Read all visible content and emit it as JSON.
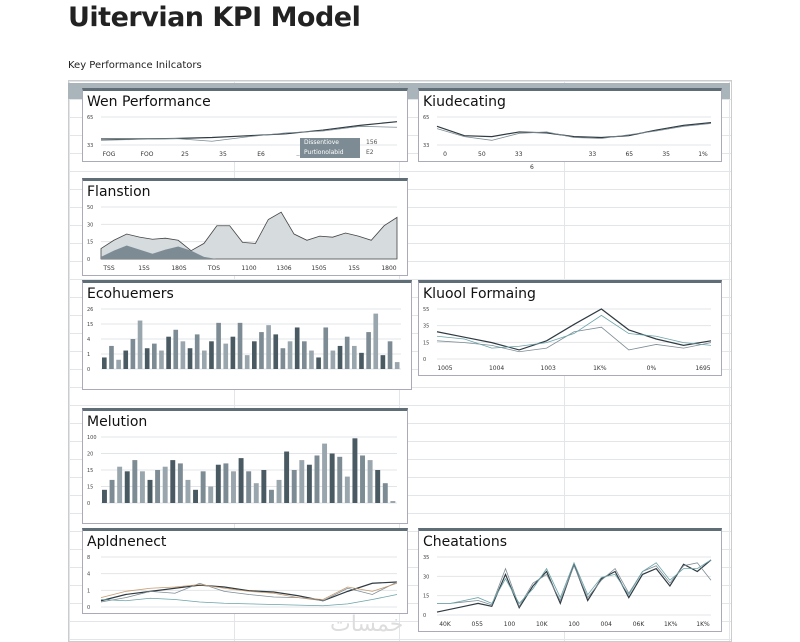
{
  "header": {
    "title": "Uitervian KPI Model",
    "subtitle": "Key Performance Inilcators"
  },
  "legend": {
    "items": [
      {
        "label": "Dissentiove",
        "value": "156"
      },
      {
        "label": "Purtionolabid",
        "value": "E2"
      }
    ]
  },
  "watermark": "خمسات",
  "colors": {
    "dark": "#4a5a63",
    "mid": "#7d8c94",
    "light": "#c5ccd0",
    "line2": "#6aa3a8",
    "line3": "#c79a6e"
  },
  "chart_data": [
    {
      "title": "Wen Performance",
      "type": "line",
      "yticks": [
        "33",
        "65"
      ],
      "ylim": [
        20,
        80
      ],
      "xlabels": [
        "FOG",
        "FOO",
        "25",
        "35",
        "E6",
        "..."
      ],
      "series": [
        {
          "name": "a",
          "values": [
            33,
            33,
            34,
            36,
            40,
            44,
            52,
            62,
            70
          ]
        },
        {
          "name": "b",
          "values": [
            30,
            32,
            34,
            28,
            38,
            46,
            50,
            60,
            58
          ]
        }
      ]
    },
    {
      "title": "Kiudecating",
      "type": "line",
      "yticks": [
        "33",
        "65"
      ],
      "ylim": [
        20,
        80
      ],
      "xlabels": [
        "0",
        "50",
        "33",
        "",
        "33",
        "65",
        "35",
        "1%"
      ],
      "xnote": "6",
      "series": [
        {
          "name": "a",
          "values": [
            60,
            40,
            38,
            48,
            46,
            38,
            36,
            40,
            52,
            62,
            68
          ]
        },
        {
          "name": "b",
          "values": [
            55,
            38,
            30,
            45,
            48,
            36,
            34,
            42,
            50,
            60,
            66
          ]
        }
      ]
    },
    {
      "title": "Flanstion",
      "type": "area",
      "yticks": [
        "0",
        "15",
        "30",
        "50"
      ],
      "ylim": [
        0,
        50
      ],
      "xlabels": [
        "TSS",
        "15S",
        "180S",
        "TOS",
        "1100",
        "1306",
        "1505",
        "15S",
        "1800"
      ],
      "series": [
        {
          "name": "a",
          "values": [
            10,
            18,
            24,
            21,
            19,
            20,
            18,
            8,
            15,
            32,
            32,
            16,
            15,
            38,
            45,
            24,
            18,
            22,
            21,
            25,
            22,
            18,
            32,
            40
          ]
        },
        {
          "name": "b",
          "values": [
            2,
            8,
            13,
            9,
            5,
            9,
            12,
            8,
            2,
            0,
            0,
            0,
            0,
            0,
            0,
            0,
            0,
            0,
            0,
            0,
            0,
            0,
            0,
            0
          ]
        }
      ]
    },
    {
      "title": "Ecohuemers",
      "type": "bar",
      "yticks": [
        "0",
        "1",
        "4",
        "15",
        "26"
      ],
      "ylim": [
        0,
        26
      ],
      "values": [
        5,
        10,
        4,
        8,
        13,
        21,
        9,
        11,
        8,
        14,
        17,
        12,
        9,
        15,
        8,
        12,
        20,
        11,
        14,
        20,
        6,
        12,
        16,
        19,
        15,
        9,
        12,
        18,
        12,
        8,
        5,
        18,
        8,
        10,
        14,
        10,
        7,
        16,
        24,
        6,
        12,
        3
      ]
    },
    {
      "title": "Kluool Formaing",
      "type": "line",
      "yticks": [
        "0",
        "15",
        "35",
        "55"
      ],
      "ylim": [
        0,
        55
      ],
      "xlabels": [
        "1005",
        "1004",
        "1003",
        "1K%",
        "0%",
        "1695"
      ],
      "series": [
        {
          "name": "a",
          "values": [
            30,
            24,
            18,
            10,
            20,
            38,
            55,
            32,
            22,
            15,
            20
          ]
        },
        {
          "name": "b",
          "values": [
            20,
            18,
            15,
            8,
            12,
            30,
            35,
            10,
            16,
            12,
            18
          ]
        },
        {
          "name": "c",
          "values": [
            25,
            22,
            12,
            14,
            18,
            28,
            48,
            28,
            25,
            18,
            15
          ]
        }
      ]
    },
    {
      "title": "Melution",
      "type": "bar",
      "yticks": [
        "0",
        "15",
        "15",
        "20",
        "100"
      ],
      "ylim": [
        0,
        100
      ],
      "values": [
        20,
        35,
        55,
        48,
        65,
        48,
        35,
        50,
        55,
        65,
        60,
        35,
        20,
        48,
        25,
        58,
        60,
        48,
        68,
        48,
        30,
        50,
        20,
        35,
        78,
        50,
        65,
        58,
        72,
        90,
        75,
        70,
        40,
        98,
        72,
        65,
        50,
        30,
        3
      ]
    },
    {
      "title": "Apldnenect",
      "type": "line",
      "yticks": [
        "0",
        "1",
        "4",
        "8"
      ],
      "ylim": [
        0,
        8
      ],
      "series": [
        {
          "name": "a",
          "values": [
            1,
            2,
            2.5,
            3,
            3.5,
            3.2,
            2.6,
            2.4,
            1.8,
            1,
            2.5,
            3.8,
            4
          ]
        },
        {
          "name": "b",
          "values": [
            0.8,
            1.5,
            2.5,
            2.2,
            3.8,
            2.5,
            2,
            1.6,
            1.5,
            1,
            3,
            2,
            4
          ]
        },
        {
          "name": "c",
          "values": [
            1.2,
            1,
            1.4,
            1.2,
            0.8,
            0.6,
            0.5,
            0.4,
            0.3,
            0.2,
            0.5,
            1.2,
            2
          ]
        },
        {
          "name": "d",
          "values": [
            1.5,
            2.5,
            3,
            3.2,
            3.6,
            3,
            2.5,
            2.2,
            1.5,
            1.2,
            3.2,
            2.5,
            3.8
          ]
        }
      ]
    },
    {
      "title": "Cheatations",
      "type": "line",
      "yticks": [
        "0",
        "15",
        "30",
        "35"
      ],
      "ylim": [
        0,
        40
      ],
      "xlabels": [
        "40K",
        "055",
        "100",
        "10K",
        "100",
        "004",
        "06K",
        "1K%",
        "1K%"
      ],
      "series": [
        {
          "name": "a",
          "values": [
            2,
            4,
            6,
            8,
            6,
            28,
            5,
            20,
            30,
            8,
            35,
            10,
            25,
            30,
            12,
            28,
            32,
            20,
            35,
            30,
            38
          ]
        },
        {
          "name": "b",
          "values": [
            8,
            8,
            9,
            10,
            7,
            32,
            6,
            22,
            28,
            10,
            34,
            12,
            24,
            32,
            15,
            30,
            34,
            22,
            34,
            36,
            24
          ]
        },
        {
          "name": "c",
          "values": [
            8,
            8,
            10,
            12,
            8,
            25,
            8,
            18,
            32,
            12,
            36,
            14,
            26,
            28,
            14,
            30,
            36,
            24,
            32,
            32,
            38
          ]
        }
      ]
    }
  ]
}
